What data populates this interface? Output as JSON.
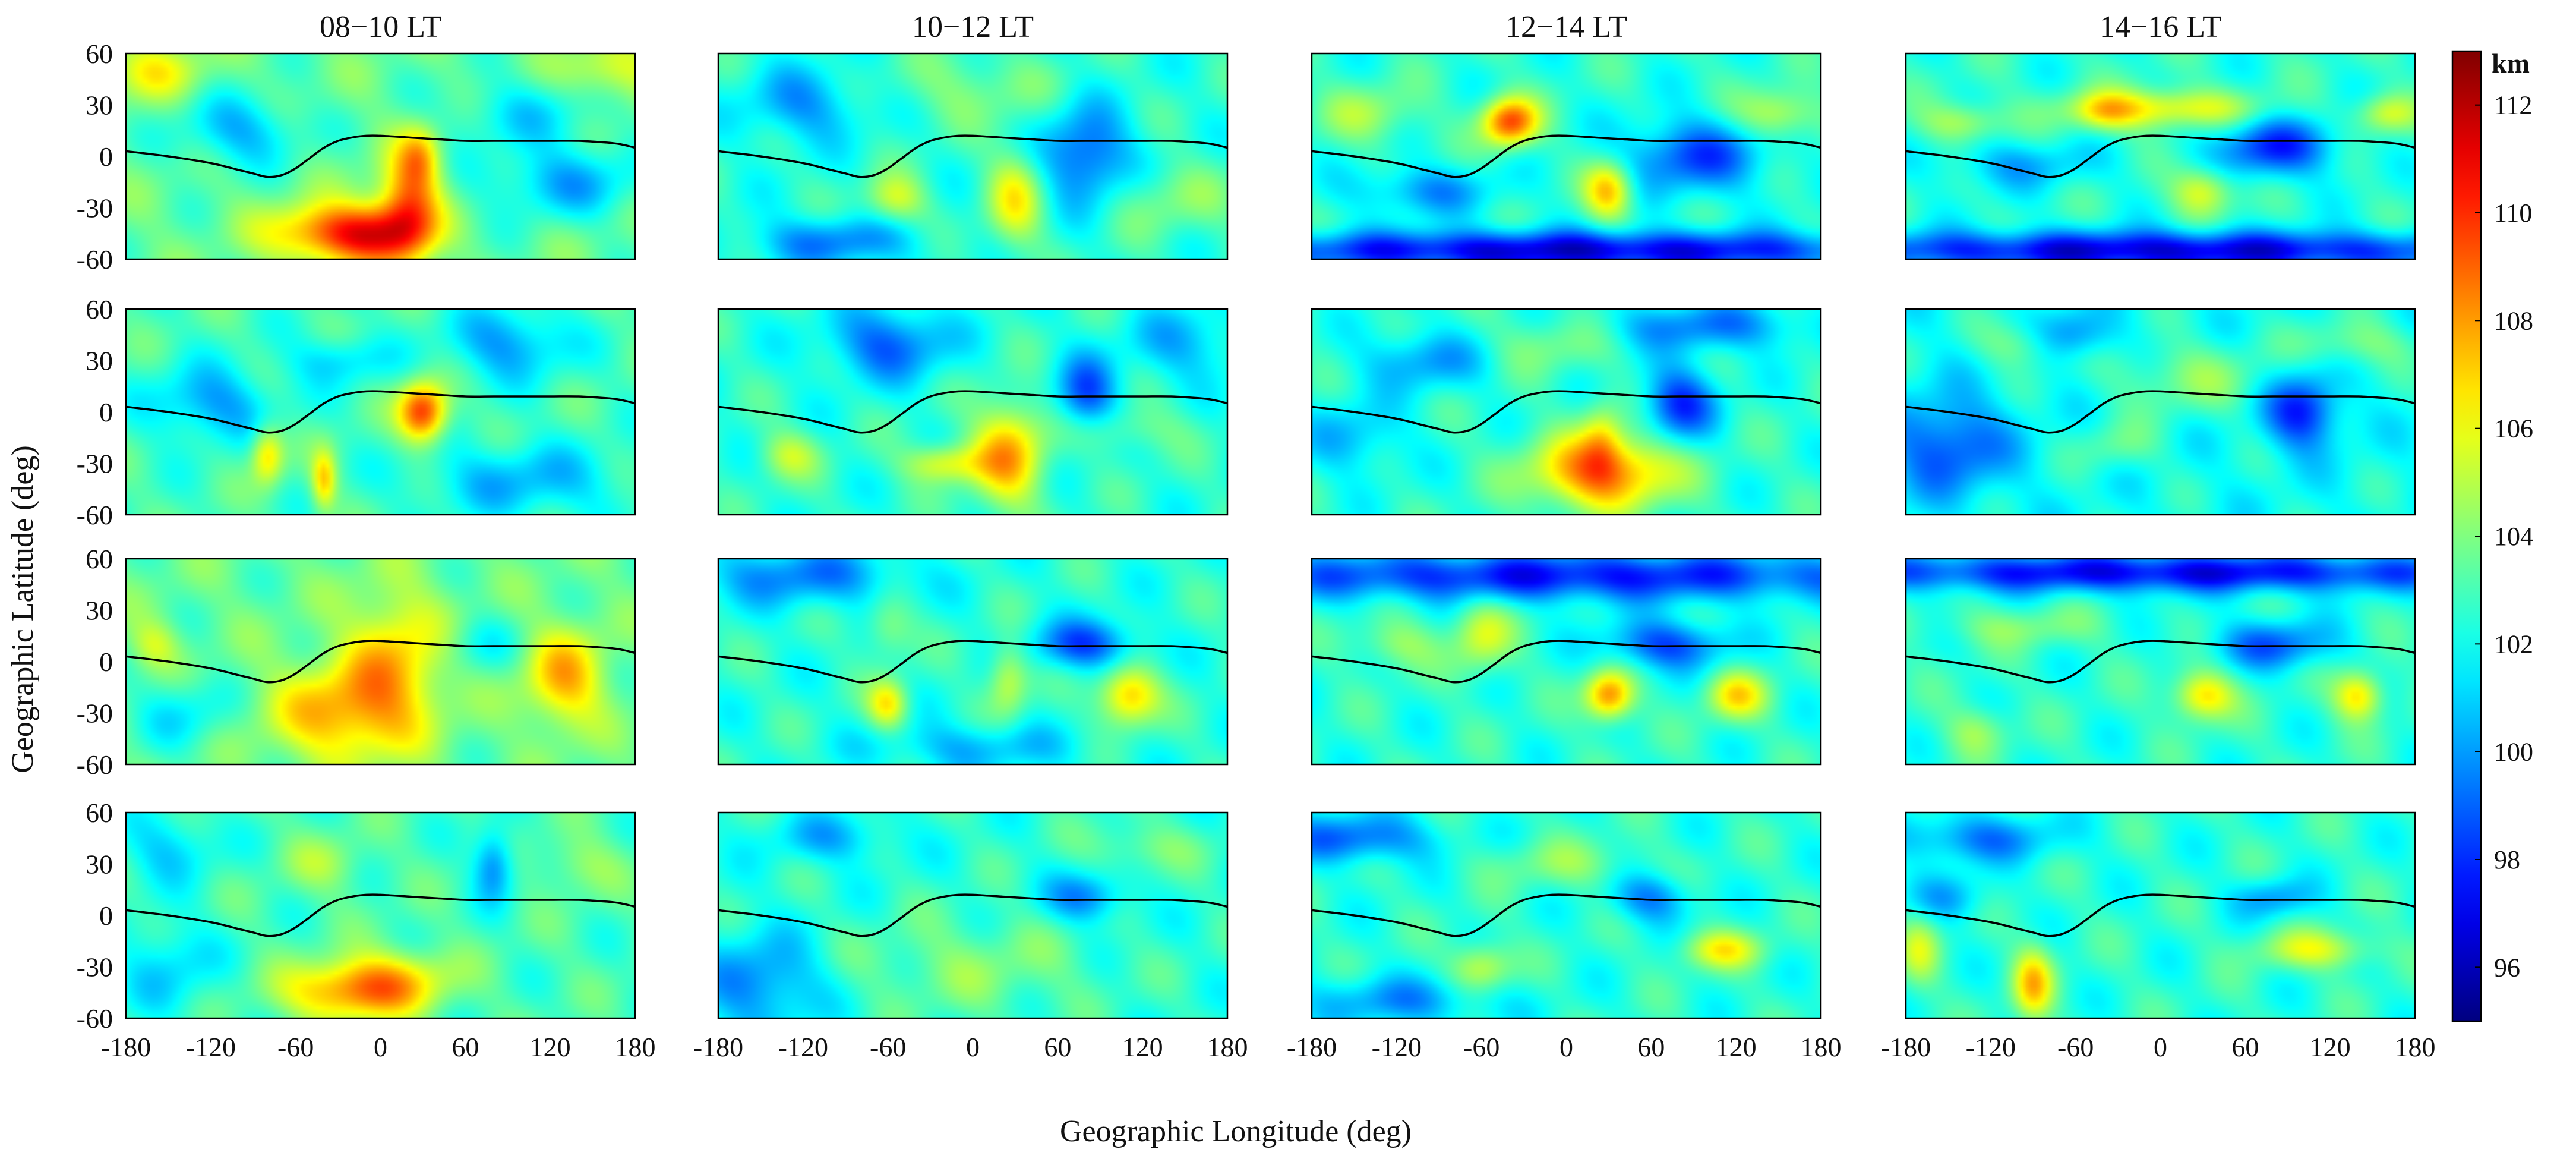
{
  "chart_data": {
    "type": "heatmap",
    "layout": {
      "rows": 4,
      "cols": 4
    },
    "column_titles": [
      "08−10 LT",
      "10−12 LT",
      "12−14 LT",
      "14−16 LT"
    ],
    "xlabel": "Geographic Longitude (deg)",
    "ylabel": "Geographic Latitude (deg)",
    "x_ticks": [
      "-180",
      "-120",
      "-60",
      "0",
      "60",
      "120",
      "180"
    ],
    "y_ticks": [
      "60",
      "30",
      "0",
      "-30",
      "-60"
    ],
    "xlim": [
      -180,
      180
    ],
    "ylim": [
      -60,
      60
    ],
    "colorbar": {
      "unit": "km",
      "range": [
        95,
        113
      ],
      "ticks": [
        "96",
        "98",
        "100",
        "102",
        "104",
        "106",
        "108",
        "110",
        "112"
      ],
      "colormap": "jet"
    },
    "dip_equator": {
      "lon": [
        -180,
        -150,
        -120,
        -100,
        -90,
        -80,
        -70,
        -60,
        -50,
        -40,
        -30,
        -20,
        -10,
        0,
        20,
        40,
        60,
        80,
        100,
        120,
        140,
        160,
        170,
        180
      ],
      "lat": [
        3,
        0,
        -4,
        -8,
        -10,
        -12,
        -11,
        -7,
        -1,
        5,
        9,
        11,
        12,
        12,
        11,
        10,
        9,
        9,
        9,
        9,
        9,
        8,
        7,
        5
      ]
    },
    "panels": [
      {
        "row": 0,
        "col": 0,
        "time": "08−10 LT",
        "base": 103.5,
        "blobs": [
          {
            "lon": -40,
            "lat": -45,
            "slon": 30,
            "slat": 12,
            "amp": 4.5
          },
          {
            "lon": -5,
            "lat": -45,
            "slon": 25,
            "slat": 12,
            "amp": 4.5
          },
          {
            "lon": 20,
            "lat": -30,
            "slon": 15,
            "slat": 22,
            "amp": 5.5
          },
          {
            "lon": 28,
            "lat": 0,
            "slon": 10,
            "slat": 12,
            "amp": 3.0
          },
          {
            "lon": -100,
            "lat": 15,
            "slon": 30,
            "slat": 15,
            "amp": -3.0
          },
          {
            "lon": 100,
            "lat": 25,
            "slon": 40,
            "slat": 15,
            "amp": -2.0
          },
          {
            "lon": 130,
            "lat": -15,
            "slon": 40,
            "slat": 15,
            "amp": -3.0
          },
          {
            "lon": -160,
            "lat": 50,
            "slon": 25,
            "slat": 12,
            "amp": 2.5
          },
          {
            "lon": 165,
            "lat": 50,
            "slon": 25,
            "slat": 12,
            "amp": 2.5
          }
        ]
      },
      {
        "row": 0,
        "col": 1,
        "time": "10−12 LT",
        "base": 102.5,
        "blobs": [
          {
            "lon": 80,
            "lat": 0,
            "slon": 22,
            "slat": 20,
            "amp": -4.0
          },
          {
            "lon": 30,
            "lat": -25,
            "slon": 14,
            "slat": 20,
            "amp": 3.5
          },
          {
            "lon": -55,
            "lat": -25,
            "slon": 15,
            "slat": 10,
            "amp": 3.0
          },
          {
            "lon": -120,
            "lat": 30,
            "slon": 30,
            "slat": 15,
            "amp": -2.5
          },
          {
            "lon": -100,
            "lat": -50,
            "slon": 40,
            "slat": 10,
            "amp": -3.0
          },
          {
            "lon": 140,
            "lat": -25,
            "slon": 35,
            "slat": 15,
            "amp": 1.5
          },
          {
            "lon": 0,
            "lat": 40,
            "slon": 40,
            "slat": 15,
            "amp": 1.5
          }
        ]
      },
      {
        "row": 0,
        "col": 2,
        "time": "12−14 LT",
        "base": 102.5,
        "blobs": [
          {
            "lon": -40,
            "lat": 20,
            "slon": 14,
            "slat": 10,
            "amp": 7.0
          },
          {
            "lon": 30,
            "lat": -20,
            "slon": 12,
            "slat": 12,
            "amp": 5.0
          },
          {
            "lon": 0,
            "lat": -55,
            "slon": 180,
            "slat": 8,
            "amp": -6.0
          },
          {
            "lon": 90,
            "lat": 0,
            "slon": 35,
            "slat": 15,
            "amp": -4.0
          },
          {
            "lon": -140,
            "lat": 25,
            "slon": 25,
            "slat": 12,
            "amp": 2.0
          },
          {
            "lon": 150,
            "lat": 25,
            "slon": 20,
            "slat": 10,
            "amp": 3.0
          },
          {
            "lon": -100,
            "lat": -20,
            "slon": 35,
            "slat": 10,
            "amp": -2.5
          }
        ]
      },
      {
        "row": 0,
        "col": 3,
        "time": "14−16 LT",
        "base": 102.5,
        "blobs": [
          {
            "lon": 0,
            "lat": 28,
            "slon": 45,
            "slat": 8,
            "amp": 4.0
          },
          {
            "lon": -40,
            "lat": 25,
            "slon": 15,
            "slat": 8,
            "amp": 2.5
          },
          {
            "lon": 30,
            "lat": -20,
            "slon": 15,
            "slat": 10,
            "amp": 3.5
          },
          {
            "lon": 0,
            "lat": -55,
            "slon": 180,
            "slat": 8,
            "amp": -6.0
          },
          {
            "lon": 80,
            "lat": 5,
            "slon": 30,
            "slat": 12,
            "amp": -4.5
          },
          {
            "lon": 160,
            "lat": 25,
            "slon": 15,
            "slat": 8,
            "amp": 3.0
          },
          {
            "lon": -140,
            "lat": 20,
            "slon": 20,
            "slat": 8,
            "amp": 2.5
          },
          {
            "lon": -100,
            "lat": -5,
            "slon": 40,
            "slat": 10,
            "amp": -2.0
          }
        ]
      },
      {
        "row": 1,
        "col": 0,
        "time": "08−10 LT",
        "base": 103.0,
        "blobs": [
          {
            "lon": 30,
            "lat": 0,
            "slon": 12,
            "slat": 12,
            "amp": 7.0
          },
          {
            "lon": -80,
            "lat": -25,
            "slon": 8,
            "slat": 12,
            "amp": 4.0
          },
          {
            "lon": -40,
            "lat": -40,
            "slon": 6,
            "slat": 12,
            "amp": 4.0
          },
          {
            "lon": -120,
            "lat": 5,
            "slon": 30,
            "slat": 15,
            "amp": -3.0
          },
          {
            "lon": 90,
            "lat": 40,
            "slon": 30,
            "slat": 15,
            "amp": -3.0
          },
          {
            "lon": 100,
            "lat": -40,
            "slon": 50,
            "slat": 15,
            "amp": -2.5
          },
          {
            "lon": -30,
            "lat": 30,
            "slon": 25,
            "slat": 10,
            "amp": -2.0
          }
        ]
      },
      {
        "row": 1,
        "col": 1,
        "time": "10−12 LT",
        "base": 102.5,
        "blobs": [
          {
            "lon": 25,
            "lat": -25,
            "slon": 18,
            "slat": 22,
            "amp": 5.0
          },
          {
            "lon": -20,
            "lat": -30,
            "slon": 20,
            "slat": 8,
            "amp": 3.5
          },
          {
            "lon": -130,
            "lat": -25,
            "slon": 15,
            "slat": 10,
            "amp": 2.5
          },
          {
            "lon": 80,
            "lat": 10,
            "slon": 15,
            "slat": 15,
            "amp": -4.0
          },
          {
            "lon": -60,
            "lat": 40,
            "slon": 30,
            "slat": 15,
            "amp": -3.5
          },
          {
            "lon": 110,
            "lat": -10,
            "slon": 30,
            "slat": 10,
            "amp": 1.5
          },
          {
            "lon": 150,
            "lat": 40,
            "slon": 30,
            "slat": 15,
            "amp": -2.0
          }
        ]
      },
      {
        "row": 1,
        "col": 2,
        "time": "12−14 LT",
        "base": 102.5,
        "blobs": [
          {
            "lon": 25,
            "lat": -35,
            "slon": 35,
            "slat": 15,
            "amp": 6.5
          },
          {
            "lon": 25,
            "lat": -15,
            "slon": 10,
            "slat": 15,
            "amp": 2.5
          },
          {
            "lon": 80,
            "lat": 5,
            "slon": 18,
            "slat": 15,
            "amp": -4.5
          },
          {
            "lon": 100,
            "lat": 50,
            "slon": 50,
            "slat": 10,
            "amp": -3.0
          },
          {
            "lon": -100,
            "lat": 30,
            "slon": 30,
            "slat": 12,
            "amp": -2.5
          },
          {
            "lon": -150,
            "lat": -15,
            "slon": 25,
            "slat": 15,
            "amp": -2.0
          },
          {
            "lon": -10,
            "lat": 40,
            "slon": 30,
            "slat": 12,
            "amp": 1.5
          }
        ]
      },
      {
        "row": 1,
        "col": 3,
        "time": "14−16 LT",
        "base": 102.0,
        "blobs": [
          {
            "lon": -150,
            "lat": -20,
            "slon": 30,
            "slat": 20,
            "amp": -3.5
          },
          {
            "lon": 100,
            "lat": 0,
            "slon": 18,
            "slat": 15,
            "amp": -4.5
          },
          {
            "lon": 20,
            "lat": 20,
            "slon": 40,
            "slat": 15,
            "amp": 2.0
          },
          {
            "lon": -30,
            "lat": -20,
            "slon": 20,
            "slat": 10,
            "amp": 1.5
          },
          {
            "lon": -60,
            "lat": 45,
            "slon": 20,
            "slat": 10,
            "amp": -2.5
          },
          {
            "lon": -100,
            "lat": 40,
            "slon": 20,
            "slat": 10,
            "amp": 2.0
          },
          {
            "lon": 140,
            "lat": 40,
            "slon": 30,
            "slat": 10,
            "amp": 2.0
          }
        ]
      },
      {
        "row": 2,
        "col": 0,
        "time": "08−10 LT",
        "base": 103.5,
        "blobs": [
          {
            "lon": -30,
            "lat": -30,
            "slon": 35,
            "slat": 20,
            "amp": 4.0
          },
          {
            "lon": 10,
            "lat": 0,
            "slon": 25,
            "slat": 30,
            "amp": 3.5
          },
          {
            "lon": 130,
            "lat": -10,
            "slon": 20,
            "slat": 20,
            "amp": 4.0
          },
          {
            "lon": 70,
            "lat": 10,
            "slon": 20,
            "slat": 12,
            "amp": -1.5
          },
          {
            "lon": -140,
            "lat": -30,
            "slon": 25,
            "slat": 15,
            "amp": -2.0
          },
          {
            "lon": -160,
            "lat": 10,
            "slon": 12,
            "slat": 10,
            "amp": 2.0
          }
        ]
      },
      {
        "row": 2,
        "col": 1,
        "time": "10−12 LT",
        "base": 102.5,
        "blobs": [
          {
            "lon": 110,
            "lat": -20,
            "slon": 15,
            "slat": 12,
            "amp": 5.0
          },
          {
            "lon": -60,
            "lat": -25,
            "slon": 10,
            "slat": 10,
            "amp": 4.0
          },
          {
            "lon": 25,
            "lat": -10,
            "slon": 10,
            "slat": 15,
            "amp": 3.0
          },
          {
            "lon": -60,
            "lat": 20,
            "slon": 12,
            "slat": 12,
            "amp": 2.0
          },
          {
            "lon": 80,
            "lat": 10,
            "slon": 25,
            "slat": 10,
            "amp": -4.0
          },
          {
            "lon": -120,
            "lat": 50,
            "slon": 50,
            "slat": 12,
            "amp": -3.0
          },
          {
            "lon": 0,
            "lat": -50,
            "slon": 50,
            "slat": 10,
            "amp": -2.0
          }
        ]
      },
      {
        "row": 2,
        "col": 2,
        "time": "12−14 LT",
        "base": 102.5,
        "blobs": [
          {
            "lon": 30,
            "lat": -20,
            "slon": 12,
            "slat": 10,
            "amp": 6.0
          },
          {
            "lon": 120,
            "lat": -20,
            "slon": 15,
            "slat": 10,
            "amp": 4.0
          },
          {
            "lon": -60,
            "lat": 15,
            "slon": 15,
            "slat": 15,
            "amp": 3.0
          },
          {
            "lon": 0,
            "lat": 50,
            "slon": 180,
            "slat": 10,
            "amp": -5.0
          },
          {
            "lon": 70,
            "lat": 10,
            "slon": 30,
            "slat": 10,
            "amp": -4.0
          },
          {
            "lon": -120,
            "lat": 10,
            "slon": 20,
            "slat": 10,
            "amp": 2.0
          }
        ]
      },
      {
        "row": 2,
        "col": 3,
        "time": "14−16 LT",
        "base": 102.5,
        "blobs": [
          {
            "lon": 30,
            "lat": -20,
            "slon": 15,
            "slat": 10,
            "amp": 4.5
          },
          {
            "lon": 140,
            "lat": -20,
            "slon": 12,
            "slat": 10,
            "amp": 4.5
          },
          {
            "lon": 0,
            "lat": 52,
            "slon": 180,
            "slat": 8,
            "amp": -5.5
          },
          {
            "lon": 80,
            "lat": 10,
            "slon": 30,
            "slat": 10,
            "amp": -3.5
          },
          {
            "lon": -100,
            "lat": 20,
            "slon": 40,
            "slat": 8,
            "amp": 1.5
          },
          {
            "lon": -130,
            "lat": -40,
            "slon": 15,
            "slat": 10,
            "amp": 2.0
          }
        ]
      },
      {
        "row": 3,
        "col": 0,
        "time": "08−10 LT",
        "base": 103.0,
        "blobs": [
          {
            "lon": -20,
            "lat": -45,
            "slon": 35,
            "slat": 12,
            "amp": 5.0
          },
          {
            "lon": 10,
            "lat": -35,
            "slon": 30,
            "slat": 12,
            "amp": 2.5
          },
          {
            "lon": 80,
            "lat": 30,
            "slon": 10,
            "slat": 15,
            "amp": -3.5
          },
          {
            "lon": -150,
            "lat": 40,
            "slon": 25,
            "slat": 15,
            "amp": -2.0
          },
          {
            "lon": -150,
            "lat": -30,
            "slon": 25,
            "slat": 20,
            "amp": -2.0
          },
          {
            "lon": 140,
            "lat": 30,
            "slon": 20,
            "slat": 12,
            "amp": 1.5
          },
          {
            "lon": -40,
            "lat": 30,
            "slon": 20,
            "slat": 12,
            "amp": 1.5
          }
        ]
      },
      {
        "row": 3,
        "col": 1,
        "time": "10−12 LT",
        "base": 102.5,
        "blobs": [
          {
            "lon": -150,
            "lat": -40,
            "slon": 30,
            "slat": 20,
            "amp": -3.0
          },
          {
            "lon": 80,
            "lat": 10,
            "slon": 20,
            "slat": 10,
            "amp": -3.0
          },
          {
            "lon": -100,
            "lat": 45,
            "slon": 30,
            "slat": 10,
            "amp": -2.0
          },
          {
            "lon": 0,
            "lat": -30,
            "slon": 60,
            "slat": 20,
            "amp": 1.5
          },
          {
            "lon": 120,
            "lat": 40,
            "slon": 30,
            "slat": 10,
            "amp": 1.5
          }
        ]
      },
      {
        "row": 3,
        "col": 2,
        "time": "12−14 LT",
        "base": 102.5,
        "blobs": [
          {
            "lon": 110,
            "lat": -20,
            "slon": 20,
            "slat": 8,
            "amp": 3.5
          },
          {
            "lon": -60,
            "lat": -30,
            "slon": 15,
            "slat": 10,
            "amp": 3.0
          },
          {
            "lon": -150,
            "lat": 45,
            "slon": 40,
            "slat": 10,
            "amp": -3.5
          },
          {
            "lon": 60,
            "lat": 10,
            "slon": 20,
            "slat": 10,
            "amp": -3.0
          },
          {
            "lon": -120,
            "lat": -50,
            "slon": 50,
            "slat": 10,
            "amp": -2.5
          },
          {
            "lon": 0,
            "lat": 30,
            "slon": 40,
            "slat": 10,
            "amp": 1.5
          }
        ]
      },
      {
        "row": 3,
        "col": 3,
        "time": "14−16 LT",
        "base": 102.5,
        "blobs": [
          {
            "lon": -90,
            "lat": -40,
            "slon": 10,
            "slat": 15,
            "amp": 4.5
          },
          {
            "lon": 110,
            "lat": -20,
            "slon": 30,
            "slat": 8,
            "amp": 3.0
          },
          {
            "lon": -170,
            "lat": -20,
            "slon": 10,
            "slat": 15,
            "amp": 2.5
          },
          {
            "lon": -130,
            "lat": 45,
            "slon": 40,
            "slat": 10,
            "amp": -3.0
          },
          {
            "lon": 80,
            "lat": 10,
            "slon": 20,
            "slat": 8,
            "amp": -2.5
          },
          {
            "lon": -150,
            "lat": 10,
            "slon": 20,
            "slat": 10,
            "amp": -2.0
          }
        ]
      }
    ]
  }
}
